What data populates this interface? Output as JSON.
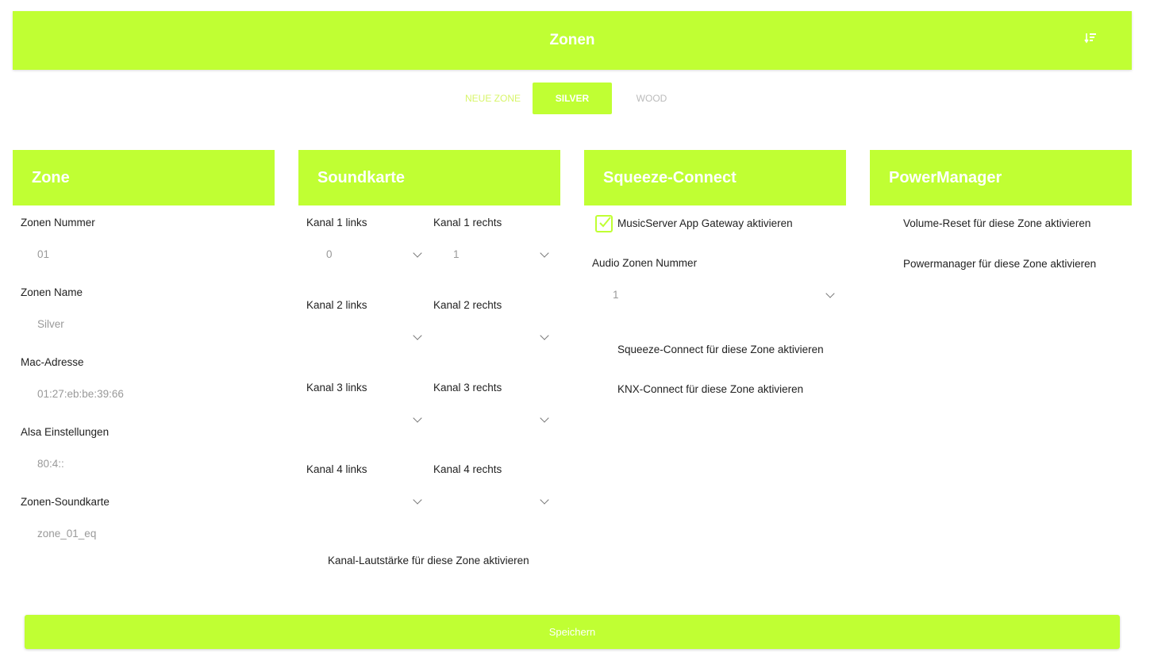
{
  "header": {
    "title": "Zonen",
    "icon": "sort-icon"
  },
  "tabs": [
    {
      "label": "NEUE ZONE"
    },
    {
      "label": "SILVER",
      "active": true
    },
    {
      "label": "WOOD"
    }
  ],
  "zone": {
    "title": "Zone",
    "fields": [
      {
        "label": "Zonen Nummer",
        "value": "01"
      },
      {
        "label": "Zonen Name",
        "value": "Silver"
      },
      {
        "label": "Mac-Adresse",
        "value": "01:27:eb:be:39:66"
      },
      {
        "label": "Alsa Einstellungen",
        "value": "80:4::"
      },
      {
        "label": "Zonen-Soundkarte",
        "value": "zone_01_eq"
      }
    ]
  },
  "soundkarte": {
    "title": "Soundkarte",
    "channels": [
      {
        "label": "Kanal 1 links",
        "value": "0"
      },
      {
        "label": "Kanal 1 rechts",
        "value": "1"
      },
      {
        "label": "Kanal 2 links",
        "value": ""
      },
      {
        "label": "Kanal 2 rechts",
        "value": ""
      },
      {
        "label": "Kanal 3 links",
        "value": ""
      },
      {
        "label": "Kanal 3 rechts",
        "value": ""
      },
      {
        "label": "Kanal 4 links",
        "value": ""
      },
      {
        "label": "Kanal 4 rechts",
        "value": ""
      }
    ],
    "volume_label": "Kanal-Lautstärke für diese Zone aktivieren"
  },
  "squeeze": {
    "title": "Squeeze-Connect",
    "gateway_label": "MusicServer App Gateway aktivieren",
    "gateway_checked": true,
    "audio_label": "Audio Zonen Nummer",
    "audio_value": "1",
    "squeeze_label": "Squeeze-Connect für diese Zone aktivieren",
    "knx_label": "KNX-Connect für diese Zone aktivieren"
  },
  "power": {
    "title": "PowerManager",
    "volume_reset_label": "Volume-Reset für diese Zone aktivieren",
    "powermanager_label": "Powermanager für diese Zone aktivieren"
  },
  "save_label": "Speichern",
  "colors": {
    "accent": "#c0ff33"
  }
}
